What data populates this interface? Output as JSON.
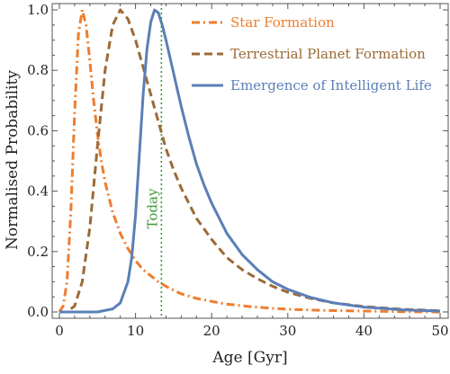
{
  "chart_data": {
    "type": "line",
    "xlabel": "Age [Gyr]",
    "ylabel": "Normalised Probability",
    "xlim": [
      0,
      50
    ],
    "ylim": [
      0,
      1
    ],
    "xticks": [
      "0",
      "10",
      "20",
      "30",
      "40",
      "50"
    ],
    "yticks": [
      "0.0",
      "0.2",
      "0.4",
      "0.6",
      "0.8",
      "1.0"
    ],
    "grid": false,
    "legend_position": "top-right",
    "series": [
      {
        "name": "Star Formation",
        "color": "#ee7d2f",
        "dash": "dash-dot",
        "x": [
          0,
          0.5,
          1.0,
          1.5,
          2.0,
          2.5,
          3.0,
          3.5,
          4.0,
          4.5,
          5.0,
          5.5,
          6.0,
          7.0,
          8.0,
          9.0,
          10.0,
          11.0,
          12.0,
          13.0,
          14.0,
          15.0,
          16.0,
          18.0,
          20.0,
          22.0,
          25.0,
          28.0,
          30.0,
          35.0,
          40.0,
          45.0,
          50.0
        ],
        "y": [
          0.0,
          0.02,
          0.1,
          0.33,
          0.66,
          0.92,
          1.0,
          0.95,
          0.83,
          0.7,
          0.59,
          0.5,
          0.43,
          0.33,
          0.26,
          0.21,
          0.17,
          0.14,
          0.12,
          0.1,
          0.085,
          0.072,
          0.06,
          0.045,
          0.035,
          0.026,
          0.018,
          0.012,
          0.009,
          0.005,
          0.003,
          0.001,
          0.0
        ]
      },
      {
        "name": "Terrestrial Planet Formation",
        "color": "#9c6a38",
        "dash": "dashed",
        "x": [
          0,
          1.0,
          2.0,
          3.0,
          4.0,
          5.0,
          6.0,
          7.0,
          8.0,
          9.0,
          10.0,
          11.0,
          12.0,
          13.0,
          14.0,
          15.0,
          16.0,
          17.0,
          18.0,
          20.0,
          22.0,
          24.0,
          26.0,
          28.0,
          30.0,
          33.0,
          36.0,
          40.0,
          45.0,
          50.0
        ],
        "y": [
          0.0,
          0.0,
          0.02,
          0.1,
          0.28,
          0.55,
          0.8,
          0.95,
          1.0,
          0.97,
          0.9,
          0.81,
          0.72,
          0.63,
          0.54,
          0.47,
          0.41,
          0.36,
          0.31,
          0.24,
          0.18,
          0.14,
          0.11,
          0.085,
          0.065,
          0.045,
          0.03,
          0.018,
          0.009,
          0.004
        ]
      },
      {
        "name": "Emergence of Intelligent Life",
        "color": "#5b7fb7",
        "dash": "solid",
        "x": [
          0,
          3.0,
          5.0,
          7.0,
          8.0,
          9.0,
          9.5,
          10.0,
          10.5,
          11.0,
          11.5,
          12.0,
          12.5,
          13.0,
          13.5,
          14.0,
          15.0,
          16.0,
          17.0,
          18.0,
          19.0,
          20.0,
          22.0,
          24.0,
          26.0,
          28.0,
          30.0,
          33.0,
          36.0,
          40.0,
          45.0,
          50.0
        ],
        "y": [
          0.0,
          0.0,
          0.0,
          0.01,
          0.03,
          0.1,
          0.18,
          0.32,
          0.52,
          0.72,
          0.87,
          0.96,
          1.0,
          0.99,
          0.95,
          0.9,
          0.79,
          0.68,
          0.58,
          0.49,
          0.42,
          0.36,
          0.26,
          0.19,
          0.14,
          0.1,
          0.075,
          0.048,
          0.03,
          0.016,
          0.007,
          0.003
        ]
      }
    ],
    "annotations": [
      {
        "text": "Today",
        "x": 13.4,
        "color": "#3a9a35"
      }
    ]
  }
}
